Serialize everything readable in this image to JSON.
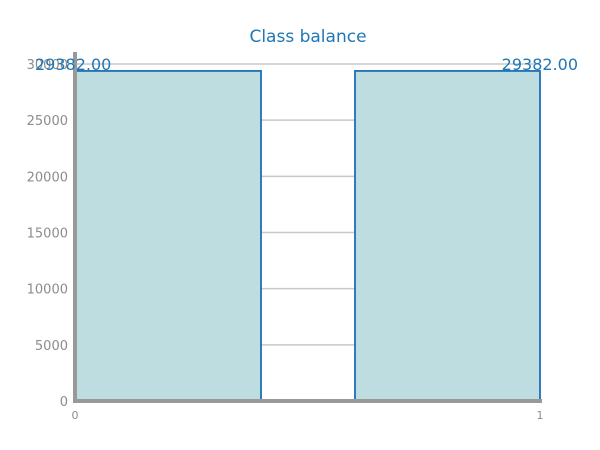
{
  "chart_data": {
    "type": "bar",
    "title": "Class balance",
    "categories": [
      "0",
      "1"
    ],
    "values": [
      29382,
      29382
    ],
    "value_labels": [
      "29382.00",
      "29382.00"
    ],
    "xlabel": "",
    "ylabel": "",
    "ylim": [
      0,
      30000
    ],
    "yticks": [
      0,
      5000,
      10000,
      15000,
      20000,
      25000,
      30000
    ],
    "ytick_labels": [
      "0",
      "5000",
      "10000",
      "15000",
      "20000",
      "25000",
      "30000"
    ],
    "xticks": [
      "0",
      "1"
    ],
    "grid": true,
    "colors": {
      "bar_fill": "#bddde0",
      "bar_stroke": "#1f6fb4",
      "grid": "#c8c8c8",
      "axis": "#999999",
      "title": "#1f77b4",
      "label": "#1f77b4"
    }
  }
}
